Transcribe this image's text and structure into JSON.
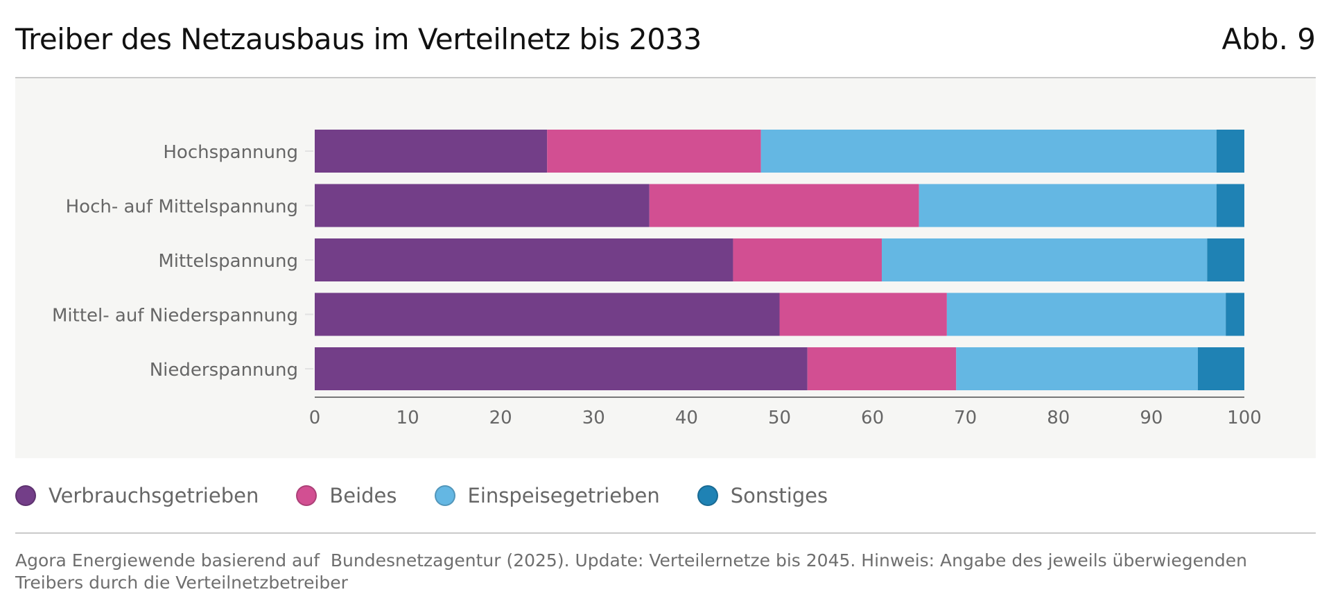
{
  "header": {
    "title": "Treiber des Netzausbaus im Verteilnetz bis 2033",
    "figure_number": "Abb. 9"
  },
  "colors": {
    "Verbrauchsgetrieben": "#733e88",
    "Beides": "#d24f92",
    "Einspeisegetrieben": "#64b7e3",
    "Sonstiges": "#1f82b4"
  },
  "legend": [
    {
      "label": "Verbrauchsgetrieben",
      "color": "#733e88"
    },
    {
      "label": "Beides",
      "color": "#d24f92"
    },
    {
      "label": "Einspeisegetrieben",
      "color": "#64b7e3"
    },
    {
      "label": "Sonstiges",
      "color": "#1f82b4"
    }
  ],
  "source": "Agora Energiewende basierend auf  Bundesnetzagentur (2025). Update: Verteilernetze bis 2045. Hinweis: Angabe des jeweils überwiegenden Treibers durch die Verteilnetzbetreiber",
  "chart_data": {
    "type": "bar",
    "orientation": "horizontal",
    "stacked": true,
    "categories": [
      "Hochspannung",
      "Hoch- auf Mittelspannung",
      "Mittelspannung",
      "Mittel- auf Niederspannung",
      "Niederspannung"
    ],
    "series": [
      {
        "name": "Verbrauchsgetrieben",
        "values": [
          25,
          36,
          45,
          50,
          53
        ]
      },
      {
        "name": "Beides",
        "values": [
          23,
          29,
          16,
          18,
          16
        ]
      },
      {
        "name": "Einspeisegetrieben",
        "values": [
          49,
          32,
          35,
          30,
          26
        ]
      },
      {
        "name": "Sonstiges",
        "values": [
          3,
          3,
          4,
          2,
          5
        ]
      }
    ],
    "xlim": [
      0,
      100
    ],
    "xticks": [
      "0",
      "10",
      "20",
      "30",
      "40",
      "50",
      "60",
      "70",
      "80",
      "90",
      "100"
    ],
    "grid": false,
    "legend_position": "bottom-left"
  }
}
